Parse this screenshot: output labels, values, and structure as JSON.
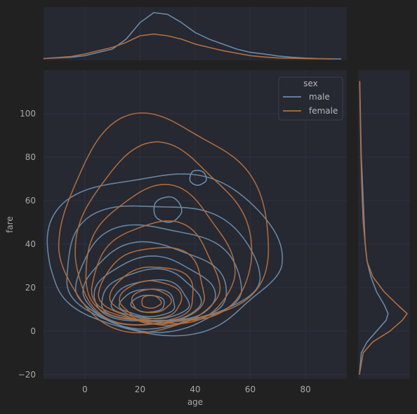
{
  "chart_data": {
    "type": "kde_jointplot",
    "xlabel": "age",
    "ylabel": "fare",
    "xlim": [
      -15,
      95
    ],
    "ylim": [
      -22,
      120
    ],
    "x_ticks": [
      0,
      20,
      40,
      60,
      80
    ],
    "y_ticks": [
      -20,
      0,
      20,
      40,
      60,
      80,
      100
    ],
    "grid": true,
    "legend": {
      "title": "sex",
      "placement": "top-right",
      "entries": [
        "male",
        "female"
      ]
    },
    "colors": {
      "background": "#212121",
      "axes_face": "#262832",
      "grid": "#2f3240",
      "tick_text": "#a9a9a9",
      "male": "#6a8aa4",
      "female": "#b06f3e"
    },
    "series": [
      {
        "name": "male",
        "joint_contours_approx": [
          {
            "level": 1,
            "center": [
              28,
              30
            ],
            "radii": [
              42,
              38
            ]
          },
          {
            "level": 2,
            "center": [
              27,
              25
            ],
            "radii": [
              35,
              30
            ]
          },
          {
            "level": 3,
            "center": [
              26,
              21
            ],
            "radii": [
              30,
              24
            ]
          },
          {
            "level": 4,
            "center": [
              25,
              18
            ],
            "radii": [
              26,
              19
            ]
          },
          {
            "level": 5,
            "center": [
              25,
              16
            ],
            "radii": [
              22,
              15
            ]
          },
          {
            "level": 6,
            "center": [
              24,
              14
            ],
            "radii": [
              18,
              12
            ]
          },
          {
            "level": 7,
            "center": [
              24,
              13
            ],
            "radii": [
              14,
              9
            ]
          },
          {
            "level": 8,
            "center": [
              23,
              12
            ],
            "radii": [
              10,
              6.5
            ]
          },
          {
            "level": 9,
            "center": [
              23,
              12
            ],
            "radii": [
              6,
              4
            ]
          }
        ],
        "joint_islands_approx": [
          {
            "center": [
              30,
              55
            ],
            "radii": [
              5,
              6
            ]
          },
          {
            "center": [
              41,
              70
            ],
            "radii": [
              3,
              3.5
            ]
          }
        ],
        "age_density": [
          [
            -15,
            0.0002
          ],
          [
            -5,
            0.001
          ],
          [
            0,
            0.002
          ],
          [
            5,
            0.004
          ],
          [
            10,
            0.006
          ],
          [
            15,
            0.012
          ],
          [
            20,
            0.022
          ],
          [
            25,
            0.028
          ],
          [
            30,
            0.027
          ],
          [
            35,
            0.022
          ],
          [
            40,
            0.016
          ],
          [
            45,
            0.012
          ],
          [
            50,
            0.009
          ],
          [
            55,
            0.006
          ],
          [
            60,
            0.004
          ],
          [
            65,
            0.003
          ],
          [
            70,
            0.0018
          ],
          [
            75,
            0.001
          ],
          [
            80,
            0.0005
          ],
          [
            85,
            0.0002
          ],
          [
            93,
            0.0
          ]
        ],
        "fare_density": [
          [
            -20,
            0.0
          ],
          [
            -10,
            0.002
          ],
          [
            -5,
            0.008
          ],
          [
            0,
            0.018
          ],
          [
            5,
            0.028
          ],
          [
            8,
            0.03
          ],
          [
            12,
            0.026
          ],
          [
            18,
            0.018
          ],
          [
            25,
            0.012
          ],
          [
            32,
            0.008
          ],
          [
            40,
            0.006
          ],
          [
            50,
            0.005
          ],
          [
            60,
            0.004
          ],
          [
            70,
            0.003
          ],
          [
            80,
            0.002
          ],
          [
            90,
            0.0015
          ],
          [
            100,
            0.001
          ],
          [
            115,
            0.0003
          ]
        ]
      },
      {
        "name": "female",
        "joint_contours_approx": [
          {
            "level": 1,
            "center": [
              28,
              40
            ],
            "radii": [
              38,
              50
            ]
          },
          {
            "level": 2,
            "center": [
              28,
              35
            ],
            "radii": [
              32,
              42
            ]
          },
          {
            "level": 3,
            "center": [
              27,
              28
            ],
            "radii": [
              27,
              32
            ]
          },
          {
            "level": 4,
            "center": [
              26,
              22
            ],
            "radii": [
              23,
              24
            ]
          },
          {
            "level": 5,
            "center": [
              25,
              18
            ],
            "radii": [
              19,
              18
            ]
          },
          {
            "level": 6,
            "center": [
              25,
              15
            ],
            "radii": [
              15,
              13
            ]
          },
          {
            "level": 7,
            "center": [
              24,
              13
            ],
            "radii": [
              11,
              9
            ]
          },
          {
            "level": 8,
            "center": [
              24,
              13
            ],
            "radii": [
              7,
              5.5
            ]
          },
          {
            "level": 9,
            "center": [
              24,
              13
            ],
            "radii": [
              3.5,
              3
            ]
          }
        ],
        "age_density": [
          [
            -15,
            0.0002
          ],
          [
            -5,
            0.0015
          ],
          [
            0,
            0.003
          ],
          [
            5,
            0.005
          ],
          [
            10,
            0.007
          ],
          [
            15,
            0.01
          ],
          [
            20,
            0.014
          ],
          [
            25,
            0.015
          ],
          [
            30,
            0.014
          ],
          [
            35,
            0.012
          ],
          [
            40,
            0.009
          ],
          [
            45,
            0.007
          ],
          [
            50,
            0.005
          ],
          [
            55,
            0.0035
          ],
          [
            60,
            0.002
          ],
          [
            65,
            0.0012
          ],
          [
            70,
            0.0006
          ],
          [
            80,
            0.0002
          ],
          [
            90,
            0.0
          ]
        ],
        "fare_density": [
          [
            -20,
            0.0
          ],
          [
            -10,
            0.004
          ],
          [
            -5,
            0.014
          ],
          [
            0,
            0.032
          ],
          [
            5,
            0.045
          ],
          [
            8,
            0.05
          ],
          [
            12,
            0.04
          ],
          [
            18,
            0.026
          ],
          [
            25,
            0.014
          ],
          [
            32,
            0.008
          ],
          [
            40,
            0.006
          ],
          [
            50,
            0.004
          ],
          [
            60,
            0.003
          ],
          [
            70,
            0.0022
          ],
          [
            80,
            0.0016
          ],
          [
            90,
            0.0012
          ],
          [
            100,
            0.0008
          ],
          [
            115,
            0.0002
          ]
        ]
      }
    ]
  }
}
